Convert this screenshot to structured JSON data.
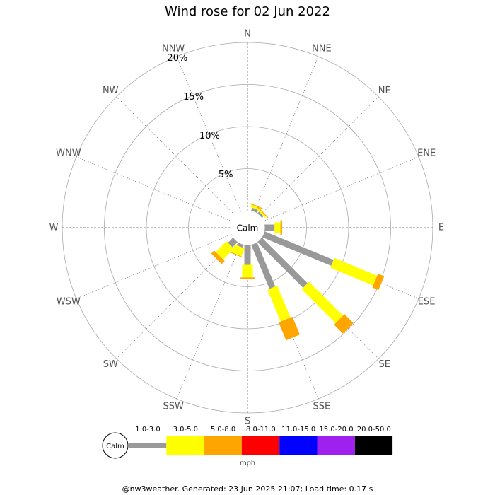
{
  "chart_data": {
    "type": "windrose",
    "title": "Wind rose for 02 Jun 2022",
    "categories": [
      "N",
      "NNE",
      "NE",
      "ENE",
      "E",
      "ESE",
      "SE",
      "SSE",
      "S",
      "SSW",
      "SW",
      "WSW",
      "W",
      "WNW",
      "NW",
      "NNW"
    ],
    "rlim": [
      0,
      20
    ],
    "rticks": [
      {
        "value": 5,
        "label": "5%"
      },
      {
        "value": 10,
        "label": "10%"
      },
      {
        "value": 15,
        "label": "15%"
      },
      {
        "value": 20,
        "label": "20%"
      }
    ],
    "center_label": "Calm",
    "series": [
      {
        "name": "1.0-3.0",
        "color": "#999999",
        "values": [
          0,
          0.4,
          0.3,
          0,
          1.2,
          8.9,
          7.7,
          5.7,
          2.4,
          0.4,
          0.9,
          0,
          0,
          0,
          0,
          0
        ]
      },
      {
        "name": "3.0-5.0",
        "color": "#ffff00",
        "values": [
          0,
          0.3,
          0.2,
          0,
          0.7,
          5.5,
          5.7,
          4.1,
          1.5,
          1.0,
          1.8,
          0,
          0,
          0,
          0,
          0
        ]
      },
      {
        "name": "5.0-8.0",
        "color": "#ffa500",
        "values": [
          0,
          0.1,
          0.1,
          0,
          0.2,
          0.8,
          1.5,
          2.3,
          0.2,
          0.1,
          0.5,
          0,
          0,
          0,
          0,
          0
        ]
      },
      {
        "name": "8.0-11.0",
        "color": "#ff0000",
        "values": [
          0,
          0,
          0,
          0,
          0,
          0,
          0,
          0,
          0,
          0,
          0,
          0,
          0,
          0,
          0,
          0
        ]
      },
      {
        "name": "11.0-15.0",
        "color": "#0000ff",
        "values": [
          0,
          0,
          0,
          0,
          0,
          0,
          0,
          0,
          0,
          0,
          0,
          0,
          0,
          0,
          0,
          0
        ]
      },
      {
        "name": "15.0-20.0",
        "color": "#a020f0",
        "values": [
          0,
          0,
          0,
          0,
          0,
          0,
          0,
          0,
          0,
          0,
          0,
          0,
          0,
          0,
          0,
          0
        ]
      },
      {
        "name": "20.0-50.0",
        "color": "#000000",
        "values": [
          0,
          0,
          0,
          0,
          0,
          0,
          0,
          0,
          0,
          0,
          0,
          0,
          0,
          0,
          0,
          0
        ]
      }
    ],
    "unit_label": "mph",
    "footer": "@nw3weather. Generated: 23 Jun 2025 21:07; Load time: 0.17 s"
  }
}
